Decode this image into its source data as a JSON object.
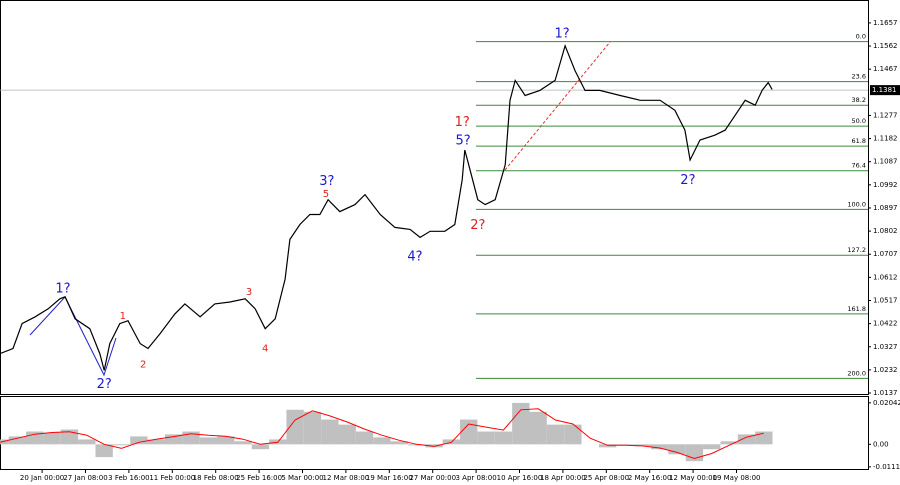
{
  "chart_data": [
    {
      "type": "line",
      "x": [
        0,
        3,
        5.1,
        8.1,
        11.1,
        13.8,
        15,
        17.3,
        20.7,
        23,
        24,
        25.3,
        27.6,
        29.5,
        32.3,
        34.1,
        36.9,
        40.3,
        42.6,
        46.1,
        49.5,
        53,
        56.5,
        58.8,
        61.1,
        63.4,
        65.7,
        66.8,
        69.1,
        71.4,
        73.7,
        75.6,
        78.3,
        81.8,
        84.1,
        87.6,
        91,
        94.5,
        96.8,
        99.1,
        102.5,
        104.8,
        106.5,
        107.1,
        108.3,
        110.1,
        111.8,
        114.1,
        116.4,
        117.5,
        118.7,
        121,
        124.4,
        127.9,
        130.2,
        132.5,
        134.8,
        138.2,
        142.9,
        147.5,
        152.1,
        155.5,
        157.8,
        159,
        161.3,
        164.7,
        167.1,
        169.4,
        171.7,
        174,
        175.6,
        177,
        177.9
      ],
      "values": [
        1.0299,
        1.032,
        1.0422,
        1.045,
        1.0483,
        1.0524,
        1.0532,
        1.0442,
        1.0401,
        1.0299,
        1.023,
        1.034,
        1.0422,
        1.0434,
        1.034,
        1.032,
        1.0381,
        1.0462,
        1.0503,
        1.045,
        1.0503,
        1.0511,
        1.0524,
        1.0483,
        1.0401,
        1.0442,
        1.0605,
        1.0768,
        1.0829,
        1.087,
        1.087,
        1.0931,
        1.0882,
        1.0911,
        1.0952,
        1.087,
        1.0817,
        1.0809,
        1.0776,
        1.0801,
        1.0801,
        1.0829,
        1.1013,
        1.1135,
        1.1054,
        1.0931,
        1.0911,
        1.0931,
        1.1074,
        1.1339,
        1.1421,
        1.1359,
        1.138,
        1.1421,
        1.1563,
        1.1461,
        1.138,
        1.138,
        1.1359,
        1.1339,
        1.1339,
        1.1298,
        1.1217,
        1.1094,
        1.1176,
        1.1196,
        1.1217,
        1.1278,
        1.1339,
        1.1319,
        1.138,
        1.1412,
        1.1384
      ],
      "color": "#000000",
      "xlim": [
        0,
        200
      ],
      "ylim": [
        1.0133,
        1.1747
      ],
      "yticks": [
        1.1657,
        1.1562,
        1.1467,
        1.1277,
        1.1182,
        1.1087,
        1.0992,
        1.0897,
        1.0802,
        1.0707,
        1.0612,
        1.0517,
        1.0422,
        1.0327,
        1.0232,
        1.0137
      ],
      "current_price": 1.1381,
      "fib_color": "#3a8c3a",
      "fib_levels": [
        {
          "label": "0.0",
          "price": 1.158
        },
        {
          "label": "23.6",
          "price": 1.1416
        },
        {
          "label": "38.2",
          "price": 1.1319
        },
        {
          "label": "50.0",
          "price": 1.1233
        },
        {
          "label": "61.8",
          "price": 1.1151
        },
        {
          "label": "76.4",
          "price": 1.105
        },
        {
          "label": "100.0",
          "price": 1.0891
        },
        {
          "label": "127.2",
          "price": 1.0703
        },
        {
          "label": "161.8",
          "price": 1.0462
        },
        {
          "label": "200.0",
          "price": 1.0197
        }
      ],
      "annotations": [
        {
          "text": "1?",
          "color": "#1a1acc",
          "x": 14.5,
          "y": 1.0564
        },
        {
          "text": "2?",
          "color": "#1a1acc",
          "x": 24,
          "y": 1.0173
        },
        {
          "text": "1",
          "color": "#e02020",
          "x": 28.3,
          "y": 1.0454
        },
        {
          "text": "2",
          "color": "#e02020",
          "x": 33,
          "y": 1.0255
        },
        {
          "text": "3",
          "color": "#e02020",
          "x": 57.4,
          "y": 1.0552
        },
        {
          "text": "4",
          "color": "#e02020",
          "x": 61.1,
          "y": 1.032
        },
        {
          "text": "3?",
          "color": "#1a1acc",
          "x": 75.3,
          "y": 1.1005
        },
        {
          "text": "5",
          "color": "#e02020",
          "x": 75.1,
          "y": 1.0954
        },
        {
          "text": "4?",
          "color": "#1a1acc",
          "x": 95.6,
          "y": 1.0695
        },
        {
          "text": "1?",
          "color": "#e02020",
          "x": 106.5,
          "y": 1.1249
        },
        {
          "text": "5?",
          "color": "#1a1acc",
          "x": 106.7,
          "y": 1.1172
        },
        {
          "text": "2?",
          "color": "#e02020",
          "x": 110.1,
          "y": 1.0825
        },
        {
          "text": "1?",
          "color": "#1a1acc",
          "x": 129.5,
          "y": 1.1612
        },
        {
          "text": "2?",
          "color": "#1a1acc",
          "x": 158.5,
          "y": 1.1009
        }
      ]
    },
    {
      "type": "bar",
      "x": [
        0,
        4,
        8,
        12,
        16,
        20,
        24,
        28,
        32,
        36,
        40,
        44,
        48,
        52,
        56,
        60,
        64,
        68,
        72,
        76,
        80,
        84,
        88,
        92,
        96,
        100,
        104,
        108,
        112,
        116,
        120,
        124,
        128,
        132,
        136,
        140,
        144,
        148,
        152,
        156,
        160,
        164,
        168,
        172,
        176
      ],
      "values": [
        0.0024,
        0.0039,
        0.0063,
        0.0058,
        0.0073,
        0.0024,
        -0.0063,
        -0.0005,
        0.0039,
        0.0024,
        0.0049,
        0.0063,
        0.0034,
        0.0039,
        0.0015,
        -0.0024,
        0.0024,
        0.017,
        0.016,
        0.0122,
        0.0097,
        0.0063,
        0.0034,
        0.0015,
        -0.0005,
        -0.0015,
        0.0024,
        0.0122,
        0.0063,
        0.0063,
        0.0204,
        0.016,
        0.0097,
        0.0097,
        0,
        -0.0015,
        -0.0005,
        -0.001,
        -0.0024,
        -0.0049,
        -0.0083,
        -0.0024,
        0.0015,
        0.0049,
        0.0063
      ],
      "color": "#c0c0c0",
      "signal": {
        "color": "#ff0000",
        "values": [
          0.001,
          0.003,
          0.005,
          0.0058,
          0.0062,
          0.0045,
          0.0,
          -0.002,
          0.001,
          0.0025,
          0.0038,
          0.0052,
          0.0045,
          0.004,
          0.0025,
          0.0,
          0.001,
          0.012,
          0.0165,
          0.014,
          0.011,
          0.0075,
          0.0045,
          0.002,
          0.0,
          -0.001,
          0.001,
          0.01,
          0.0085,
          0.007,
          0.017,
          0.0175,
          0.012,
          0.01,
          0.003,
          -0.0005,
          -0.0005,
          -0.0008,
          -0.0018,
          -0.004,
          -0.007,
          -0.0045,
          -0.0005,
          0.0035,
          0.0055
        ]
      },
      "xlim": [
        0,
        200
      ],
      "ylim": [
        -0.01215,
        0.0233
      ],
      "yticks": [
        0.02042,
        {
          "value": 0,
          "label": "0.00"
        },
        -0.0111
      ],
      "xticks": [
        {
          "value": 9.7,
          "label": "20 Jan 00:00"
        },
        {
          "value": 19.7,
          "label": "27 Jan 08:00"
        },
        {
          "value": 29.7,
          "label": "3 Feb 16:00"
        },
        {
          "value": 39.7,
          "label": "11 Feb 00:00"
        },
        {
          "value": 49.7,
          "label": "18 Feb 08:00"
        },
        {
          "value": 59.7,
          "label": "25 Feb 16:00"
        },
        {
          "value": 69.7,
          "label": "5 Mar 00:00"
        },
        {
          "value": 79.7,
          "label": "12 Mar 08:00"
        },
        {
          "value": 89.7,
          "label": "19 Mar 16:00"
        },
        {
          "value": 99.7,
          "label": "27 Mar 00:00"
        },
        {
          "value": 109.7,
          "label": "3 Apr 08:00"
        },
        {
          "value": 119.7,
          "label": "10 Apr 16:00"
        },
        {
          "value": 129.7,
          "label": "18 Apr 00:00"
        },
        {
          "value": 139.7,
          "label": "25 Apr 08:00"
        },
        {
          "value": 149.7,
          "label": "2 May 16:00"
        },
        {
          "value": 159.7,
          "label": "12 May 00:00"
        },
        {
          "value": 169.7,
          "label": "19 May 08:00"
        }
      ]
    }
  ]
}
